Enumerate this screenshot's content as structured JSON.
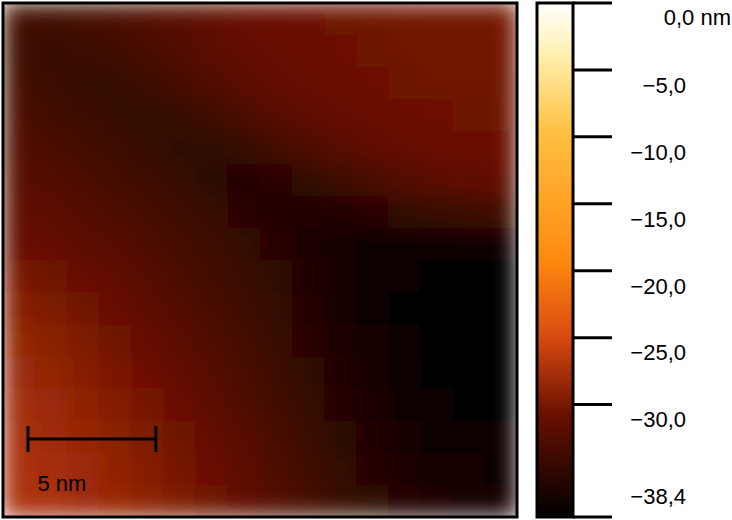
{
  "chart_data": {
    "type": "heatmap",
    "xlim": [
      0,
      20.1
    ],
    "ylim": [
      0,
      20.1
    ],
    "tick_labels": false,
    "cells": [
      [
        -33.5,
        -33.8,
        -33.5,
        -33,
        -32.5,
        -32,
        -31.5,
        -31,
        -30.8,
        -30.6,
        -30.5,
        -30.4,
        -30.3,
        -30.2,
        -30.2,
        -30.2
      ],
      [
        -34,
        -34.3,
        -34.2,
        -33.8,
        -33.2,
        -32.5,
        -31.8,
        -31.3,
        -31,
        -30.8,
        -30.6,
        -30.5,
        -30.4,
        -30.3,
        -30.3,
        -30.3
      ],
      [
        -33.5,
        -34.2,
        -34.5,
        -34.5,
        -34,
        -33.3,
        -32.5,
        -31.8,
        -31.3,
        -31,
        -30.8,
        -30.6,
        -30.5,
        -30.4,
        -30.4,
        -30.4
      ],
      [
        -33,
        -33.6,
        -34.2,
        -34.6,
        -34.8,
        -34.5,
        -33.8,
        -33,
        -32.2,
        -31.6,
        -31.2,
        -30.9,
        -30.7,
        -30.6,
        -30.5,
        -30.5
      ],
      [
        -32.5,
        -33,
        -33.5,
        -34,
        -34.6,
        -35,
        -35,
        -34.5,
        -33.6,
        -32.8,
        -32,
        -31.5,
        -31.1,
        -30.9,
        -30.8,
        -30.8
      ],
      [
        -32,
        -32.4,
        -32.9,
        -33.4,
        -34,
        -34.6,
        -35.2,
        -35.5,
        -35.4,
        -34.8,
        -34,
        -33.2,
        -32.4,
        -31.8,
        -31.5,
        -31.3
      ],
      [
        -31.5,
        -31.8,
        -32.3,
        -32.8,
        -33.3,
        -33.9,
        -34.6,
        -35.3,
        -35.8,
        -36,
        -35.8,
        -35.3,
        -34.8,
        -34.4,
        -34,
        -33.8
      ],
      [
        -31,
        -31.3,
        -31.7,
        -32.2,
        -32.8,
        -33.4,
        -34,
        -34.7,
        -35.4,
        -36.2,
        -36.8,
        -37.2,
        -37.5,
        -37.6,
        -37.5,
        -37.4
      ],
      [
        -30,
        -30.5,
        -31,
        -31.6,
        -32.2,
        -32.9,
        -33.6,
        -34.3,
        -35.1,
        -35.9,
        -36.7,
        -37.4,
        -37.9,
        -38.1,
        -38.2,
        -38.1
      ],
      [
        -29.2,
        -29.7,
        -30.3,
        -31,
        -31.7,
        -32.4,
        -33.1,
        -33.9,
        -34.8,
        -35.7,
        -36.6,
        -37.4,
        -38,
        -38.3,
        -38.4,
        -38.3
      ],
      [
        -28.6,
        -29.1,
        -29.7,
        -30.4,
        -31.1,
        -31.9,
        -32.7,
        -33.5,
        -34.4,
        -35.3,
        -36.3,
        -37.1,
        -37.8,
        -38.2,
        -38.3,
        -38.3
      ],
      [
        -28.2,
        -28.6,
        -29.2,
        -29.9,
        -30.6,
        -31.4,
        -32.2,
        -33.1,
        -34,
        -35,
        -36,
        -36.9,
        -37.6,
        -38,
        -38.2,
        -38.2
      ],
      [
        -27.8,
        -28.2,
        -28.8,
        -29.4,
        -30.1,
        -30.9,
        -31.8,
        -32.7,
        -33.6,
        -34.6,
        -35.6,
        -36.5,
        -37.2,
        -37.7,
        -38,
        -38
      ],
      [
        -27.5,
        -27.9,
        -28.4,
        -29,
        -29.7,
        -30.5,
        -31.3,
        -32.2,
        -33.2,
        -34.2,
        -35.2,
        -36.1,
        -36.8,
        -37.3,
        -37.6,
        -37.7
      ],
      [
        -27.3,
        -27.6,
        -28.1,
        -28.7,
        -29.3,
        -30.1,
        -30.9,
        -31.8,
        -32.8,
        -33.8,
        -34.8,
        -35.6,
        -36.3,
        -36.8,
        -37.1,
        -37.2
      ],
      [
        -27.2,
        -27.5,
        -27.9,
        -28.4,
        -29,
        -29.7,
        -30.5,
        -31.4,
        -32.4,
        -33.4,
        -34.3,
        -35.1,
        -35.8,
        -36.3,
        -36.6,
        -36.7
      ]
    ],
    "colorbar_range": [
      -38.4,
      0
    ],
    "colorbar_ticks": [
      {
        "value": 0,
        "label": "0,0 nm"
      },
      {
        "value": -5,
        "label": "−5,0"
      },
      {
        "value": -10,
        "label": "−10,0"
      },
      {
        "value": -15,
        "label": "−15,0"
      },
      {
        "value": -20,
        "label": "−20,0"
      },
      {
        "value": -25,
        "label": "−25,0"
      },
      {
        "value": -30,
        "label": "−30,0"
      },
      {
        "value": -38.4,
        "label": "−38,4"
      }
    ],
    "scale_bar": {
      "value": 5,
      "label": "5 nm"
    }
  }
}
